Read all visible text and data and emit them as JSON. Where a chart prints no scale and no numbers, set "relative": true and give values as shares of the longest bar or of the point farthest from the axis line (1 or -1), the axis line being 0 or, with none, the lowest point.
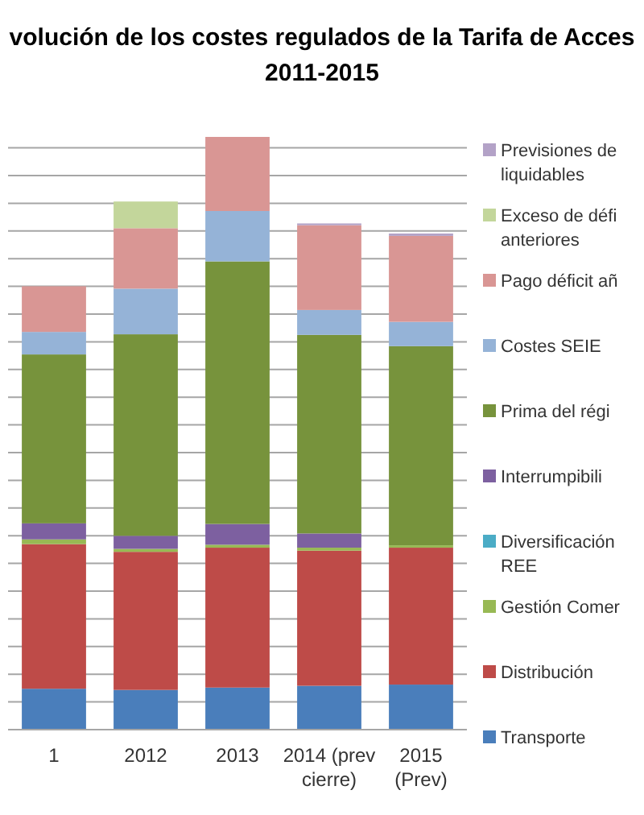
{
  "chart_data": {
    "type": "bar",
    "title": "volución de los costes regulados de la Tarifa de Acces",
    "subtitle": "2011-2015",
    "relative": true,
    "stacked": true,
    "grid": "y",
    "legend": "right",
    "categories": [
      "1",
      "2012",
      "2013",
      "2014 (prev cierre)",
      "2015 (Prev)"
    ],
    "series": [
      {
        "name": "Transporte",
        "color": "#4a7ebb",
        "values": [
          0.069,
          0.067,
          0.071,
          0.074,
          0.076
        ]
      },
      {
        "name": "Distribución",
        "color": "#be4b48",
        "values": [
          0.244,
          0.233,
          0.236,
          0.228,
          0.231
        ]
      },
      {
        "name": "Gestión Comer",
        "color": "#98b954",
        "values": [
          0.008,
          0.005,
          0.005,
          0.005,
          0.004
        ]
      },
      {
        "name": "Diversificación REE",
        "color": "#4bacc6",
        "values": [
          0,
          0,
          0,
          0,
          0
        ]
      },
      {
        "name": "Interrumpibili",
        "color": "#7d60a0",
        "values": [
          0.027,
          0.022,
          0.035,
          0.024,
          0
        ]
      },
      {
        "name": "Prima del régi",
        "color": "#77933c",
        "values": [
          0.285,
          0.34,
          0.443,
          0.335,
          0.336
        ]
      },
      {
        "name": "Costes SEIE",
        "color": "#95b3d7",
        "values": [
          0.038,
          0.077,
          0.085,
          0.042,
          0.041
        ]
      },
      {
        "name": "Pago déficit añ",
        "color": "#d99694",
        "values": [
          0.077,
          0.102,
          0.125,
          0.143,
          0.145
        ]
      },
      {
        "name": "Exceso de défi anteriores",
        "color": "#c3d69b",
        "values": [
          0,
          0.045,
          0,
          0,
          0
        ]
      },
      {
        "name": "Previsiones de liquidables",
        "color": "#b3a2c7",
        "values": [
          0,
          0,
          0,
          0.003,
          0.004
        ]
      }
    ]
  }
}
